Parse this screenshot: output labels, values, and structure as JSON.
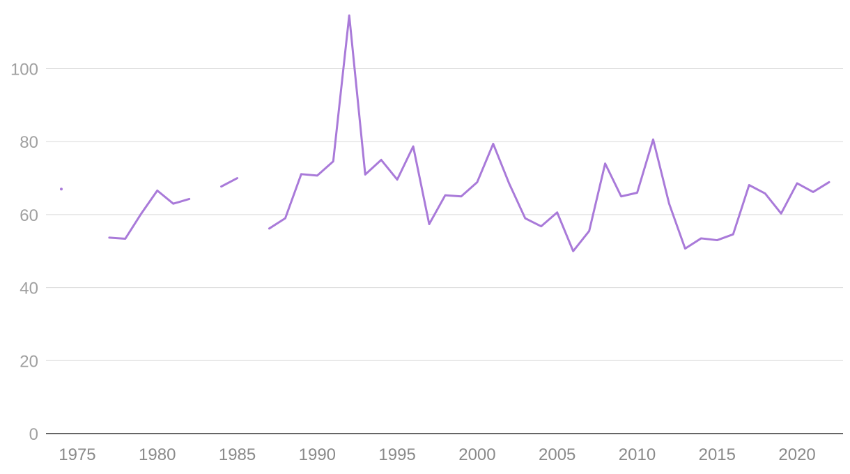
{
  "chart_data": {
    "type": "line",
    "title": "",
    "xlabel": "",
    "ylabel": "",
    "xlim": [
      1974,
      2022
    ],
    "ylim": [
      0,
      115
    ],
    "yticks": [
      0,
      20,
      40,
      60,
      80,
      100
    ],
    "xticks": [
      1975,
      1980,
      1985,
      1990,
      1995,
      2000,
      2005,
      2010,
      2015,
      2020
    ],
    "grid": true,
    "legend": "none",
    "colors": {
      "series": "#a97ad9",
      "grid": "#d9d9d9",
      "baseline": "#333333",
      "tick": "#a0a0a0"
    },
    "x": [
      1974,
      1975,
      1976,
      1977,
      1978,
      1979,
      1980,
      1981,
      1982,
      1983,
      1984,
      1985,
      1986,
      1987,
      1988,
      1989,
      1990,
      1991,
      1992,
      1993,
      1994,
      1995,
      1996,
      1997,
      1998,
      1999,
      2000,
      2001,
      2002,
      2003,
      2004,
      2005,
      2006,
      2007,
      2008,
      2009,
      2010,
      2011,
      2012,
      2013,
      2014,
      2015,
      2016,
      2017,
      2018,
      2019,
      2020,
      2021,
      2022
    ],
    "series": [
      {
        "values": [
          67,
          null,
          null,
          53.7,
          53.4,
          60.3,
          66.6,
          63.0,
          64.3,
          null,
          67.7,
          70.0,
          null,
          56.2,
          59.0,
          71.1,
          70.7,
          74.6,
          114.6,
          71.0,
          75.0,
          69.6,
          78.7,
          57.4,
          65.3,
          65.0,
          68.9,
          79.4,
          68.5,
          59.0,
          56.8,
          60.6,
          50.0,
          55.5,
          74.0,
          65.0,
          66.0,
          80.6,
          63.0,
          50.7,
          53.5,
          53.0,
          54.6,
          68.1,
          65.8,
          60.3,
          68.6,
          66.2,
          68.9
        ]
      }
    ]
  }
}
